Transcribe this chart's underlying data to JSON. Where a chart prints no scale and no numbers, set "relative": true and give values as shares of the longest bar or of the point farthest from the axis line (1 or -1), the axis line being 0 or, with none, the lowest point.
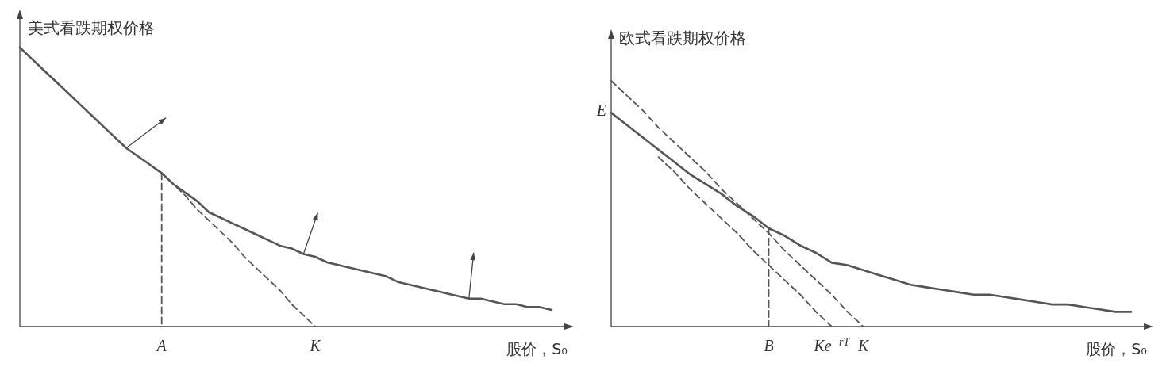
{
  "chart_data": [
    {
      "type": "line",
      "relative": true,
      "ylabel": "美式看跌期权价格",
      "xlabel": "股价，S₀",
      "legend": false,
      "categories": [
        null,
        null,
        null,
        null,
        null,
        null,
        null,
        null,
        null,
        null,
        null,
        null,
        "A",
        null,
        null,
        null,
        null,
        null,
        null,
        null,
        null,
        null,
        null,
        null,
        null,
        "K",
        null,
        null,
        null,
        null,
        null,
        null,
        null,
        null,
        null,
        null,
        null,
        null,
        null,
        null,
        null,
        null,
        null,
        null,
        null,
        null
      ],
      "series": [
        {
          "color": "#555555",
          "line_style": "solid",
          "values": [
            1.0,
            0.96,
            0.92,
            0.88,
            0.84,
            0.8,
            0.76,
            0.72,
            0.68,
            0.64,
            0.61,
            0.58,
            0.55,
            0.51,
            0.48,
            0.45,
            0.41,
            0.39,
            0.37,
            0.35,
            0.33,
            0.31,
            0.29,
            0.28,
            0.26,
            0.25,
            0.23,
            0.22,
            0.21,
            0.2,
            0.19,
            0.18,
            0.16,
            0.15,
            0.14,
            0.13,
            0.12,
            0.11,
            0.1,
            0.1,
            0.09,
            0.08,
            0.08,
            0.07,
            0.07,
            0.06
          ]
        },
        {
          "color": "#555555",
          "line_style": "dashed",
          "values": [
            null,
            null,
            null,
            null,
            null,
            null,
            null,
            null,
            null,
            null,
            null,
            null,
            0.55,
            0.51,
            0.47,
            0.42,
            0.38,
            0.34,
            0.3,
            0.25,
            0.21,
            0.17,
            0.13,
            0.08,
            0.04,
            0.0,
            null,
            null,
            null,
            null,
            null,
            null,
            null,
            null,
            null,
            null,
            null,
            null,
            null,
            null,
            null,
            null,
            null,
            null,
            null,
            null
          ]
        },
        {
          "color": "#555555",
          "line_style": "dashed",
          "x": [
            "A",
            "A"
          ],
          "values": [
            0.55,
            0
          ]
        }
      ]
    },
    {
      "type": "line",
      "relative": true,
      "ylabel": "欧式看跌期权价格",
      "xlabel": "股价，S₀",
      "legend": false,
      "annotations": [
        "E"
      ],
      "categories": [
        null,
        null,
        null,
        null,
        null,
        null,
        null,
        null,
        null,
        null,
        "B",
        null,
        null,
        null,
        "Ke$^{−rT}$",
        null,
        "K",
        null,
        null,
        null,
        null,
        null,
        null,
        null,
        null,
        null,
        null,
        null,
        null,
        null,
        null,
        null,
        null,
        null
      ],
      "series": [
        {
          "color": "#555555",
          "line_style": "solid",
          "values": [
            0.87,
            0.82,
            0.77,
            0.72,
            0.67,
            0.62,
            0.58,
            0.54,
            0.49,
            0.45,
            0.4,
            0.37,
            0.33,
            0.3,
            0.26,
            0.25,
            0.23,
            0.21,
            0.19,
            0.17,
            0.16,
            0.15,
            0.14,
            0.13,
            0.13,
            0.12,
            0.11,
            0.1,
            0.09,
            0.09,
            0.08,
            0.07,
            0.06,
            0.06
          ]
        },
        {
          "color": "#555555",
          "line_style": "dashed",
          "values": [
            1.0,
            0.94,
            0.88,
            0.81,
            0.75,
            0.69,
            0.63,
            0.56,
            0.5,
            0.44,
            0.38,
            0.31,
            0.25,
            0.19,
            0.13,
            0.06,
            0.0,
            null,
            null,
            null,
            null,
            null,
            null,
            null,
            null,
            null,
            null,
            null,
            null,
            null,
            null,
            null,
            null,
            null
          ]
        },
        {
          "color": "#555555",
          "line_style": "dashed",
          "values": [
            null,
            null,
            null,
            0.69,
            0.63,
            0.56,
            0.5,
            0.44,
            0.38,
            0.31,
            0.25,
            0.19,
            0.13,
            0.06,
            0.0,
            null,
            null,
            null,
            null,
            null,
            null,
            null,
            null,
            null,
            null,
            null,
            null,
            null,
            null,
            null,
            null,
            null,
            null,
            null
          ]
        },
        {
          "color": "#555555",
          "line_style": "dashed",
          "x": [
            "B",
            "B"
          ],
          "values": [
            0.4,
            0
          ]
        }
      ]
    }
  ]
}
